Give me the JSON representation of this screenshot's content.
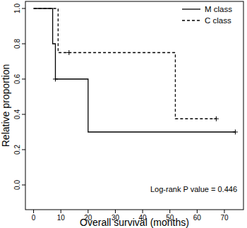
{
  "chart_data": {
    "type": "step",
    "x_label": "Overall survival (months)",
    "y_label": "Relative proportion",
    "annotation": "Log-rank P value = 0.446",
    "legend": "top-right",
    "xlim": [
      -3,
      77
    ],
    "ylim": [
      -0.14,
      1.04
    ],
    "xticks": [
      0,
      10,
      20,
      30,
      40,
      50,
      60,
      70
    ],
    "yticks": [
      {
        "value": 0,
        "label": "0.0"
      },
      {
        "value": 0.2,
        "label": "0.2"
      },
      {
        "value": 0.4,
        "label": "0.4"
      },
      {
        "value": 0.6,
        "label": "0.6"
      },
      {
        "value": 0.8,
        "label": "0.8"
      },
      {
        "value": 1,
        "label": "1.0"
      }
    ],
    "series": [
      {
        "name": "M class",
        "color": "#000000",
        "line_style": "solid",
        "marker": "plus",
        "x": [
          0,
          7,
          8,
          20,
          74
        ],
        "values": [
          1.0,
          0.8,
          0.6,
          0.3,
          0.3
        ],
        "censor_x": [
          8,
          74
        ],
        "censor_values": [
          0.6,
          0.3
        ]
      },
      {
        "name": "C class",
        "color": "#000000",
        "line_style": "dashed",
        "marker": "plus",
        "x": [
          0,
          9,
          52,
          67
        ],
        "values": [
          1.0,
          0.75,
          0.375,
          0.375
        ],
        "censor_x": [
          13,
          67
        ],
        "censor_values": [
          0.75,
          0.375
        ]
      }
    ]
  }
}
